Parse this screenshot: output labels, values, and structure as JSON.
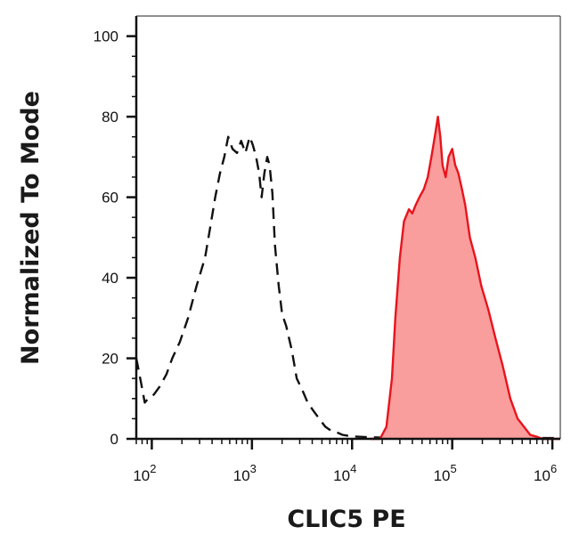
{
  "chart_data": {
    "type": "area",
    "xlabel": "CLIC5 PE",
    "ylabel": "Normalized To Mode",
    "x_scale": "log",
    "xlim": [
      70,
      1200000
    ],
    "ylim": [
      0,
      105
    ],
    "grid": false,
    "x_tick_labels": [
      {
        "base": "10",
        "exp": "2",
        "value": 100
      },
      {
        "base": "10",
        "exp": "3",
        "value": 1000
      },
      {
        "base": "10",
        "exp": "4",
        "value": 10000
      },
      {
        "base": "10",
        "exp": "5",
        "value": 100000
      },
      {
        "base": "10",
        "exp": "6",
        "value": 1000000
      }
    ],
    "y_ticks": [
      {
        "label": "0",
        "value": 0
      },
      {
        "label": "20",
        "value": 20
      },
      {
        "label": "40",
        "value": 40
      },
      {
        "label": "60",
        "value": 60
      },
      {
        "label": "80",
        "value": 80
      },
      {
        "label": "100",
        "value": 100
      }
    ],
    "series": [
      {
        "style": "dashed",
        "color": "#111111",
        "fill": "none",
        "x": [
          70,
          78,
          85,
          92,
          105,
          120,
          140,
          160,
          190,
          230,
          280,
          340,
          380,
          430,
          480,
          530,
          580,
          640,
          710,
          780,
          860,
          950,
          1020,
          1100,
          1180,
          1250,
          1330,
          1420,
          1500,
          1600,
          1700,
          1850,
          2000,
          2200,
          2500,
          2800,
          3200,
          3600,
          4100,
          4700,
          5400,
          6200,
          7200,
          8000,
          9000,
          10000,
          12000,
          15000,
          20000,
          40000,
          100000,
          300000,
          1200000
        ],
        "y": [
          20,
          14,
          9,
          10,
          11,
          13,
          16,
          20,
          24,
          30,
          38,
          45,
          52,
          60,
          66,
          70,
          75,
          72,
          71,
          74,
          71,
          75,
          73,
          70,
          66,
          60,
          66,
          70,
          68,
          61,
          48,
          38,
          31,
          28,
          22,
          15,
          12,
          9,
          7,
          5,
          3,
          2,
          1.5,
          1,
          0.8,
          0.6,
          0.5,
          0.4,
          0.3,
          0.2,
          0.2,
          0.2,
          0.2
        ]
      },
      {
        "style": "solid",
        "color": "#e8141c",
        "fill": "#f99d9d",
        "x": [
          15000,
          19000,
          22000,
          25000,
          27000,
          30000,
          33000,
          37000,
          40000,
          43000,
          47000,
          52000,
          57000,
          62000,
          68000,
          72000,
          76000,
          80000,
          86000,
          92000,
          100000,
          107000,
          115000,
          125000,
          135000,
          150000,
          170000,
          195000,
          230000,
          270000,
          320000,
          380000,
          450000,
          520000,
          600000,
          700000,
          800000,
          1200000
        ],
        "y": [
          0,
          0,
          3,
          15,
          30,
          45,
          54,
          57,
          56,
          58,
          60,
          62,
          65,
          70,
          76,
          80,
          75,
          68,
          65,
          70,
          72,
          68,
          66,
          62,
          58,
          50,
          45,
          38,
          32,
          25,
          18,
          10,
          5,
          3,
          1,
          0.5,
          0,
          0
        ]
      }
    ]
  }
}
